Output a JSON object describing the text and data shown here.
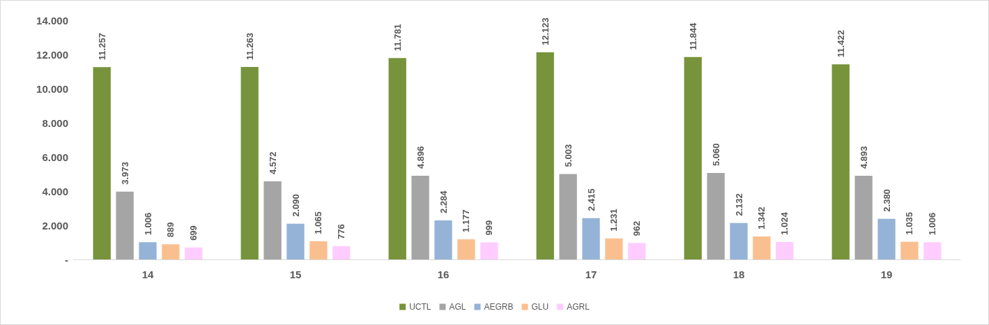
{
  "chart_data": {
    "type": "bar",
    "categories": [
      "14",
      "15",
      "16",
      "17",
      "18",
      "19"
    ],
    "series": [
      {
        "name": "UCTL",
        "color": "#77933c",
        "values": [
          11257,
          11263,
          11781,
          12123,
          11844,
          11422
        ],
        "value_labels": [
          "11.257",
          "11.263",
          "11.781",
          "12.123",
          "11.844",
          "11.422"
        ]
      },
      {
        "name": "AGL",
        "color": "#a5a5a5",
        "values": [
          3973,
          4572,
          4896,
          5003,
          5060,
          4893
        ],
        "value_labels": [
          "3.973",
          "4.572",
          "4.896",
          "5.003",
          "5.060",
          "4.893"
        ]
      },
      {
        "name": "AEGRB",
        "color": "#95b3d7",
        "values": [
          1006,
          2090,
          2284,
          2415,
          2132,
          2380
        ],
        "value_labels": [
          "1.006",
          "2.090",
          "2.284",
          "2.415",
          "2.132",
          "2.380"
        ]
      },
      {
        "name": "GLU",
        "color": "#fabf8f",
        "values": [
          889,
          1065,
          1177,
          1231,
          1342,
          1035
        ],
        "value_labels": [
          "889",
          "1.065",
          "1.177",
          "1.231",
          "1.342",
          "1.035"
        ]
      },
      {
        "name": "AGRL",
        "color": "#ffccff",
        "values": [
          699,
          776,
          999,
          962,
          1024,
          1006
        ],
        "value_labels": [
          "699",
          "776",
          "999",
          "962",
          "1.024",
          "1.006"
        ]
      }
    ],
    "ylim": [
      0,
      14000
    ],
    "yticks": [
      {
        "value": 0,
        "label": "-"
      },
      {
        "value": 2000,
        "label": "2.000"
      },
      {
        "value": 4000,
        "label": "4.000"
      },
      {
        "value": 6000,
        "label": "6.000"
      },
      {
        "value": 8000,
        "label": "8.000"
      },
      {
        "value": 10000,
        "label": "10.000"
      },
      {
        "value": 12000,
        "label": "12.000"
      },
      {
        "value": 14000,
        "label": "14.000"
      }
    ],
    "grid": false,
    "legend": "bottom"
  }
}
